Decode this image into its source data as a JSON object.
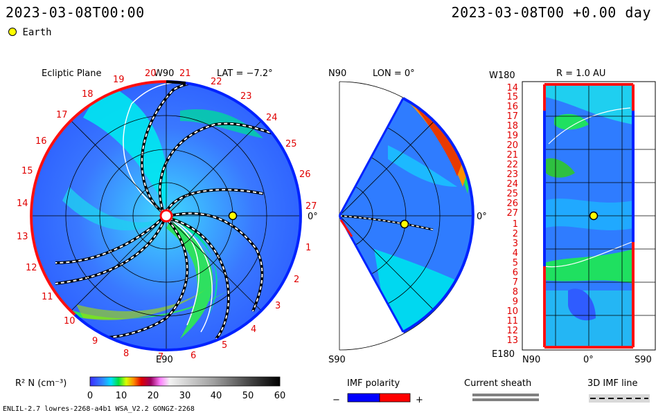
{
  "header": {
    "time_left": "2023-03-08T00:00",
    "time_right": "2023-03-08T00 +0.00 day"
  },
  "legend": {
    "earth_label": "Earth"
  },
  "ecliptic": {
    "title": "Ecliptic Plane",
    "top_label": "W90",
    "bottom_label": "E90",
    "right_label": "0°",
    "lat_label": "LAT = −7.2°",
    "ticks": [
      "20",
      "21",
      "22",
      "23",
      "24",
      "25",
      "26",
      "27",
      "1",
      "2",
      "3",
      "4",
      "5",
      "6",
      "7",
      "8",
      "9",
      "10",
      "11",
      "12",
      "13",
      "14",
      "15",
      "16",
      "17",
      "18",
      "19"
    ]
  },
  "meridional": {
    "top_label": "N90",
    "bottom_label": "S90",
    "lon_label": "LON = 0°",
    "right_label": "0°"
  },
  "shell": {
    "top_left_label": "W180",
    "bottom_left_label": "E180",
    "r_label": "R = 1.0 AU",
    "bottom_axis": {
      "left": "N90",
      "center": "0°",
      "right": "S90"
    },
    "rows": [
      "14",
      "15",
      "16",
      "17",
      "18",
      "19",
      "20",
      "21",
      "22",
      "23",
      "24",
      "25",
      "26",
      "27",
      "1",
      "2",
      "3",
      "4",
      "5",
      "6",
      "7",
      "8",
      "9",
      "10",
      "11",
      "12",
      "13"
    ]
  },
  "colorbar": {
    "label": "R² N (cm⁻³)",
    "ticks": [
      "0",
      "10",
      "20",
      "30",
      "40",
      "50",
      "60"
    ]
  },
  "imf": {
    "title": "IMF polarity",
    "minus": "−",
    "plus": "+",
    "neg_color": "#0000ff",
    "pos_color": "#ff0000"
  },
  "sheath": {
    "title": "Current sheath"
  },
  "imf3d": {
    "title": "3D IMF line"
  },
  "footer": {
    "model": "ENLIL-2.7 lowres-2268-a4b1 WSA_V2.2 GONGZ-2268"
  }
}
